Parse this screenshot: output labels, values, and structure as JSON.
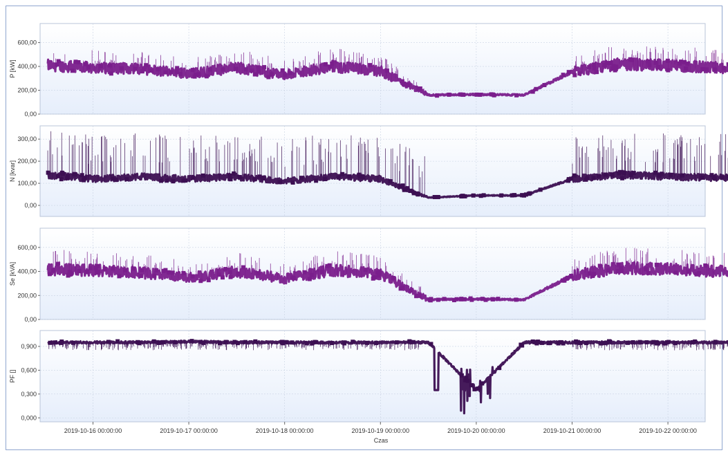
{
  "chart_data": [
    {
      "type": "line",
      "ylabel": "P [kW]",
      "ylim": [
        0,
        760
      ],
      "yticks": [
        "0,00",
        "200,00",
        "400,00",
        "600,00"
      ],
      "ytick_values": [
        0,
        200,
        400,
        600
      ],
      "x": [
        "2019-10-15 12:00",
        "2019-10-16 00:00",
        "2019-10-16 12:00",
        "2019-10-17 00:00",
        "2019-10-17 12:00",
        "2019-10-18 00:00",
        "2019-10-18 12:00",
        "2019-10-19 00:00",
        "2019-10-19 12:00",
        "2019-10-20 00:00",
        "2019-10-20 12:00",
        "2019-10-21 00:00",
        "2019-10-21 12:00",
        "2019-10-22 00:00",
        "2019-10-22 12:00"
      ],
      "series": [
        {
          "values": [
            410,
            390,
            380,
            340,
            390,
            330,
            400,
            360,
            160,
            165,
            160,
            355,
            420,
            410,
            390
          ]
        }
      ],
      "grid": true
    },
    {
      "type": "line",
      "ylabel": "N [kvar]",
      "ylim": [
        -50,
        360
      ],
      "yticks": [
        "0,00",
        "100,00",
        "200,00",
        "300,00"
      ],
      "ytick_values": [
        0,
        100,
        200,
        300
      ],
      "x": [
        "2019-10-15 12:00",
        "2019-10-16 00:00",
        "2019-10-16 12:00",
        "2019-10-17 00:00",
        "2019-10-17 12:00",
        "2019-10-18 00:00",
        "2019-10-18 12:00",
        "2019-10-19 00:00",
        "2019-10-19 12:00",
        "2019-10-20 00:00",
        "2019-10-20 12:00",
        "2019-10-21 00:00",
        "2019-10-21 12:00",
        "2019-10-22 00:00",
        "2019-10-22 12:00"
      ],
      "series": [
        {
          "values": [
            140,
            120,
            130,
            120,
            130,
            110,
            130,
            120,
            35,
            45,
            45,
            120,
            140,
            130,
            125
          ]
        }
      ],
      "grid": true
    },
    {
      "type": "line",
      "ylabel": "Se [kVA]",
      "ylim": [
        0,
        760
      ],
      "yticks": [
        "0,00",
        "200,00",
        "400,00",
        "600,00"
      ],
      "ytick_values": [
        0,
        200,
        400,
        600
      ],
      "x": [
        "2019-10-15 12:00",
        "2019-10-16 00:00",
        "2019-10-16 12:00",
        "2019-10-17 00:00",
        "2019-10-17 12:00",
        "2019-10-18 00:00",
        "2019-10-18 12:00",
        "2019-10-19 00:00",
        "2019-10-19 12:00",
        "2019-10-20 00:00",
        "2019-10-20 12:00",
        "2019-10-21 00:00",
        "2019-10-21 12:00",
        "2019-10-22 00:00",
        "2019-10-22 12:00"
      ],
      "series": [
        {
          "values": [
            420,
            410,
            390,
            350,
            400,
            340,
            410,
            380,
            165,
            170,
            165,
            365,
            430,
            420,
            400
          ]
        }
      ],
      "grid": true
    },
    {
      "type": "line",
      "ylabel": "PF []",
      "ylim": [
        -0.05,
        1.1
      ],
      "yticks": [
        "0,000",
        "0,300",
        "0,600",
        "0,900"
      ],
      "ytick_values": [
        0,
        0.3,
        0.6,
        0.9
      ],
      "x": [
        "2019-10-15 12:00",
        "2019-10-16 00:00",
        "2019-10-16 12:00",
        "2019-10-17 00:00",
        "2019-10-17 12:00",
        "2019-10-18 00:00",
        "2019-10-18 12:00",
        "2019-10-19 00:00",
        "2019-10-19 12:00",
        "2019-10-20 00:00",
        "2019-10-20 12:00",
        "2019-10-21 00:00",
        "2019-10-21 12:00",
        "2019-10-22 00:00",
        "2019-10-22 12:00"
      ],
      "series": [
        {
          "values": [
            0.95,
            0.95,
            0.95,
            0.96,
            0.95,
            0.95,
            0.95,
            0.95,
            0.95,
            0.35,
            0.95,
            0.95,
            0.95,
            0.95,
            0.95
          ]
        }
      ],
      "grid": true,
      "xticks": [
        "2019-10-16 00:00:00",
        "2019-10-17 00:00:00",
        "2019-10-18 00:00:00",
        "2019-10-19 00:00:00",
        "2019-10-20 00:00:00",
        "2019-10-21 00:00:00",
        "2019-10-22 00:00:00"
      ],
      "xlabel": "Czas"
    }
  ],
  "colors": {
    "p_series": "#7a1e8c",
    "n_series": "#3c0f52",
    "se_series": "#7a1e8c",
    "pf_series": "#3c0f52",
    "plot_bg_top": "#ffffff",
    "plot_bg_bottom": "#e6eefb",
    "grid": "#c9d3e3",
    "frame_border": "#8fa6cf"
  }
}
